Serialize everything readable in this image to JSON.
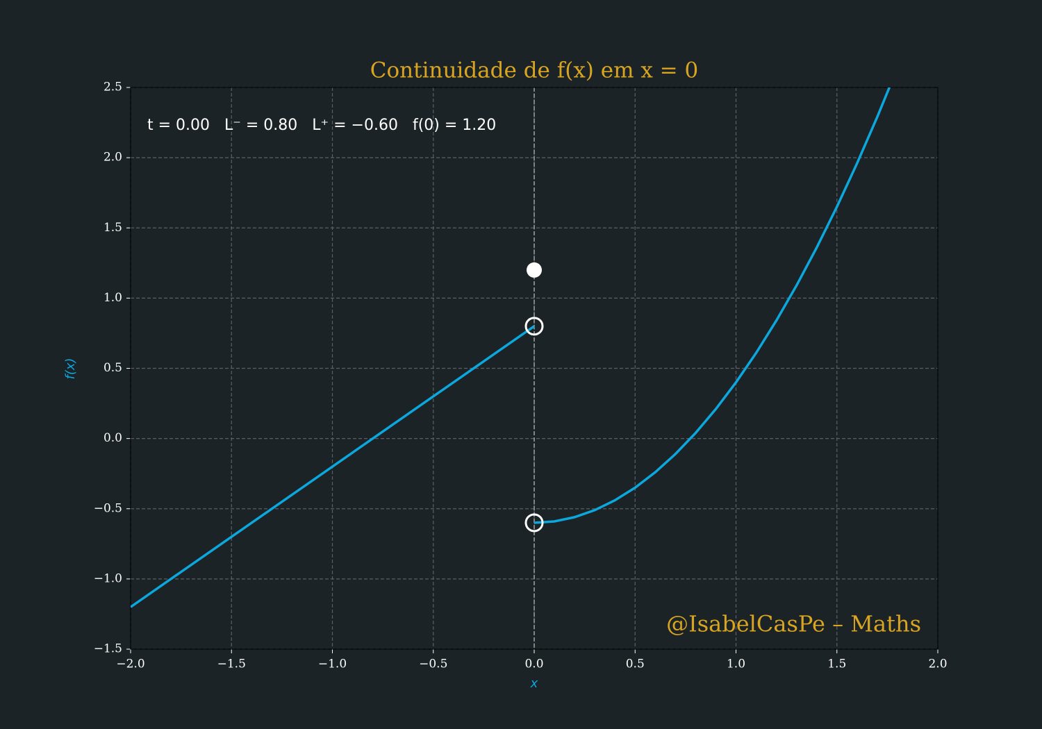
{
  "chart_data": {
    "type": "line",
    "title": "Continuidade de f(x) em x = 0",
    "annotation": "t = 0.00   L⁻ = 0.80   L⁺ = −0.60   f(0) = 1.20",
    "watermark": "@IsabelCasPe – Maths",
    "xlabel": "x",
    "ylabel": "f(x)",
    "xlim": [
      -2,
      2
    ],
    "ylim": [
      -1.5,
      2.5
    ],
    "xticks": [
      {
        "value": -2,
        "label": "−2.0"
      },
      {
        "value": -1.5,
        "label": "−1.5"
      },
      {
        "value": -1,
        "label": "−1.0"
      },
      {
        "value": -0.5,
        "label": "−0.5"
      },
      {
        "value": 0,
        "label": "0.0"
      },
      0.5,
      {
        "value": 1,
        "label": "1.0"
      },
      1.5,
      {
        "value": 2,
        "label": "2.0"
      }
    ],
    "yticks": [
      {
        "value": -1.5,
        "label": "−1.5"
      },
      {
        "value": -1,
        "label": "−1.0"
      },
      {
        "value": -0.5,
        "label": "−0.5"
      },
      {
        "value": 0,
        "label": "0.0"
      },
      0.5,
      {
        "value": 1,
        "label": "1.0"
      },
      1.5,
      {
        "value": 2,
        "label": "2.0"
      },
      2.5
    ],
    "grid": true,
    "vline_x": 0,
    "series": [
      {
        "color": "#0ca7dc",
        "x": [
          -2,
          0
        ],
        "values": [
          -1.2,
          0.8
        ]
      },
      {
        "color": "#0ca7dc",
        "x": [
          0,
          0.1,
          0.2,
          0.3,
          0.4,
          0.5,
          0.6,
          0.7,
          0.8,
          0.9,
          1.0,
          1.1,
          1.2,
          1.3,
          1.4,
          1.5,
          1.6,
          1.7,
          1.8
        ],
        "values": [
          -0.6,
          -0.59,
          -0.56,
          -0.51,
          -0.44,
          -0.35,
          -0.24,
          -0.11,
          0.04,
          0.21,
          0.4,
          0.61,
          0.84,
          1.09,
          1.36,
          1.65,
          1.96,
          2.29,
          2.64
        ]
      }
    ],
    "points": [
      {
        "x": 0,
        "y": 0.8,
        "style": "open"
      },
      {
        "x": 0,
        "y": -0.6,
        "style": "open"
      },
      {
        "x": 0,
        "y": 1.2,
        "style": "filled"
      }
    ]
  }
}
